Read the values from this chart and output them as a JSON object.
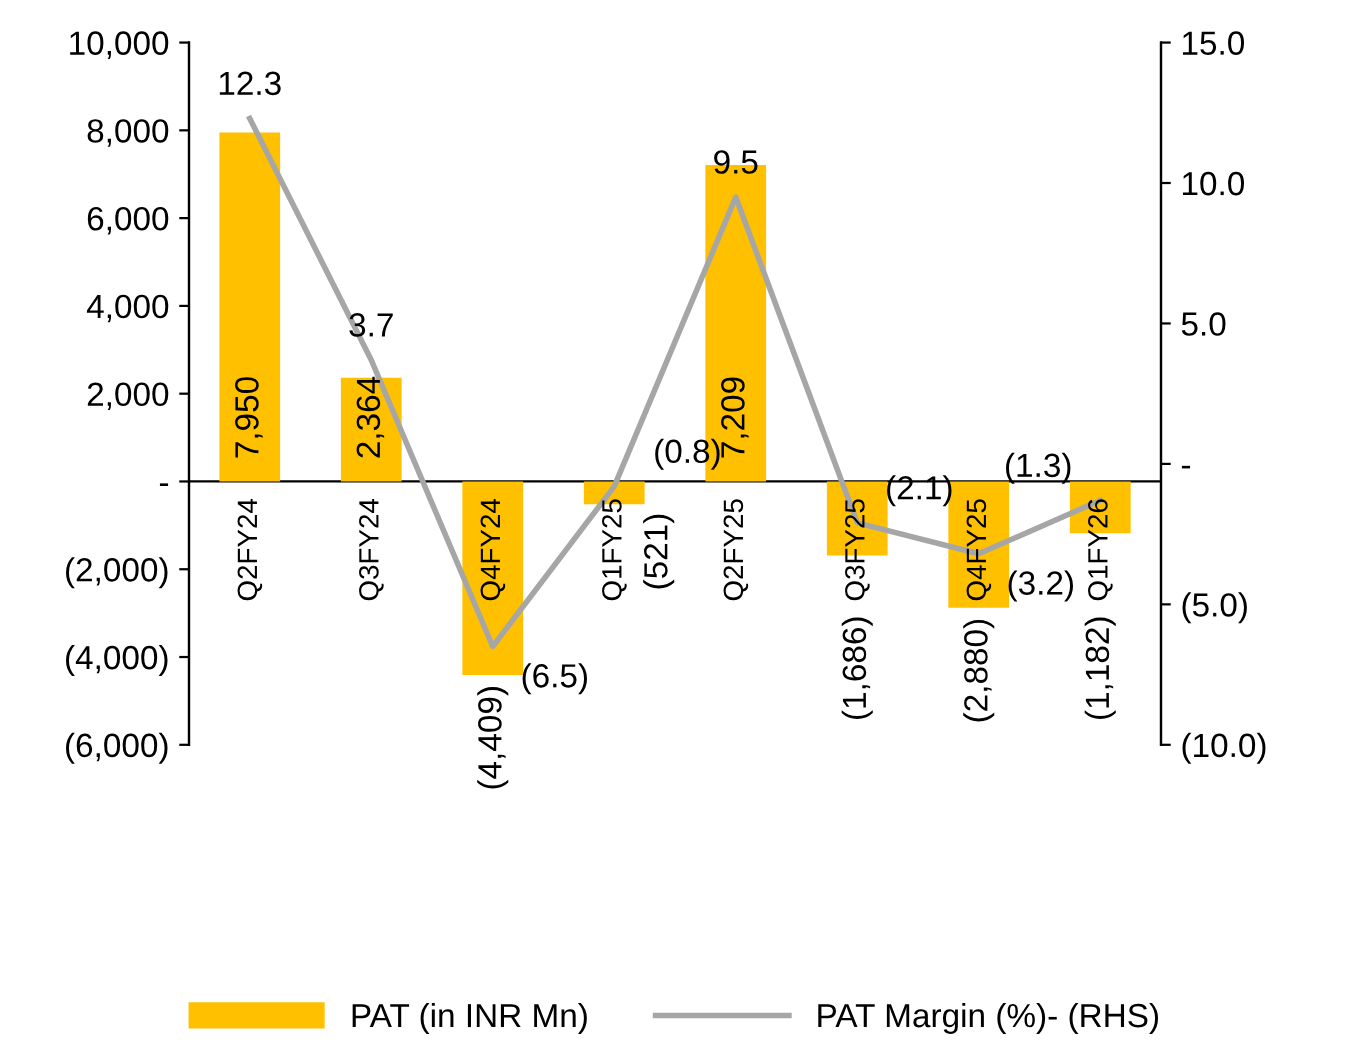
{
  "chart_data": {
    "type": "bar",
    "categories": [
      "Q2FY24",
      "Q3FY24",
      "Q4FY24",
      "Q1FY25",
      "Q2FY25",
      "Q3FY25",
      "Q4FY25",
      "Q1FY26"
    ],
    "series": [
      {
        "name": "PAT (in INR Mn)",
        "color": "#ffc000",
        "values": [
          7950,
          2364,
          -4409,
          -521,
          7209,
          -1686,
          -2880,
          -1182
        ],
        "value_labels": [
          "7,950",
          "2,364",
          "(4,409)",
          "(521)",
          "7,209",
          "(1,686)",
          "(2,880)",
          "(1,182)"
        ]
      },
      {
        "name": "PAT Margin (%)- (RHS)",
        "type": "line",
        "axis": "y2",
        "color": "#a6a6a6",
        "values": [
          12.3,
          3.7,
          -6.5,
          -0.8,
          9.5,
          -2.1,
          -3.2,
          -1.3
        ],
        "value_labels": [
          "12.3",
          "3.7",
          "(6.5)",
          "(0.8)",
          "9.5",
          "(2.1)",
          "(3.2)",
          "(1.3)"
        ]
      }
    ],
    "ylim": [
      -6000,
      10000
    ],
    "yticks": [
      {
        "value": -6000,
        "label": "(6,000)"
      },
      {
        "value": -4000,
        "label": "(4,000)"
      },
      {
        "value": -2000,
        "label": "(2,000)"
      },
      {
        "value": 0,
        "label": "-"
      },
      {
        "value": 2000,
        "label": "2,000"
      },
      {
        "value": 4000,
        "label": "4,000"
      },
      {
        "value": 6000,
        "label": "6,000"
      },
      {
        "value": 8000,
        "label": "8,000"
      },
      {
        "value": 10000,
        "label": "10,000"
      }
    ],
    "y2lim": [
      -10,
      15
    ],
    "y2ticks": [
      {
        "value": -10,
        "label": "(10.0)"
      },
      {
        "value": -5,
        "label": "(5.0)"
      },
      {
        "value": 0,
        "label": "-"
      },
      {
        "value": 5,
        "label": "5.0"
      },
      {
        "value": 10,
        "label": "10.0"
      },
      {
        "value": 15,
        "label": "15.0"
      }
    ],
    "legend": "bottom",
    "grid": false,
    "marker": "none",
    "line_style": "solid"
  }
}
